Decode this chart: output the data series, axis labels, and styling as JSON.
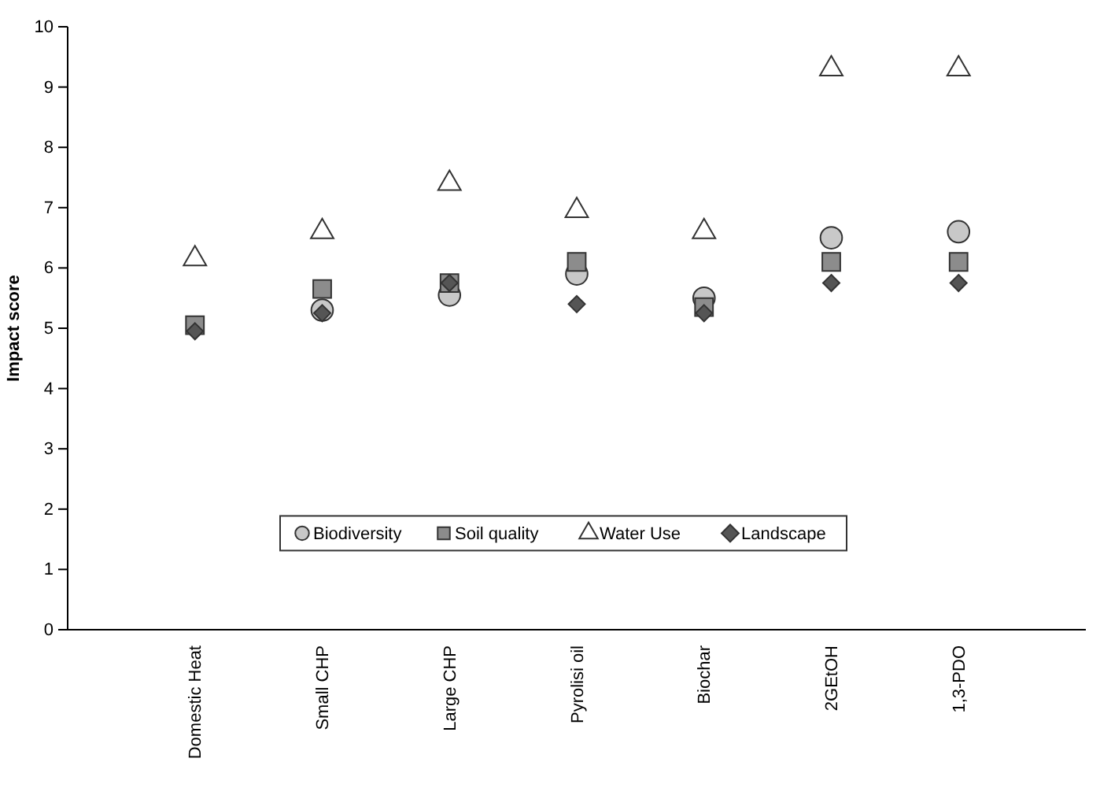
{
  "chart_data": {
    "type": "scatter",
    "ylabel": "Impact score",
    "categories": [
      "Domestic Heat",
      "Small CHP",
      "Large CHP",
      "Pyrolisi oil",
      "Biochar",
      "2GEtOH",
      "1,3-PDO"
    ],
    "ylim": [
      0,
      10
    ],
    "yticks": [
      0,
      1,
      2,
      3,
      4,
      5,
      6,
      7,
      8,
      9,
      10
    ],
    "grid": false,
    "legend": "bottom",
    "series": [
      {
        "name": "Biodiversity",
        "color": "#c8c8c8",
        "marker": "circle",
        "values": [
          null,
          5.3,
          5.55,
          5.9,
          5.5,
          6.5,
          6.6
        ]
      },
      {
        "name": "Soil quality",
        "color": "#8c8c8c",
        "marker": "square",
        "values": [
          5.05,
          5.65,
          5.75,
          6.1,
          5.35,
          6.1,
          6.1
        ]
      },
      {
        "name": "Water Use",
        "color": "#ffffff",
        "marker": "triangle",
        "values": [
          6.15,
          6.6,
          7.4,
          6.95,
          6.6,
          9.3,
          9.3
        ]
      },
      {
        "name": "Landscape",
        "color": "#555555",
        "marker": "diamond",
        "values": [
          4.95,
          5.25,
          5.75,
          5.4,
          5.25,
          5.75,
          5.75
        ]
      }
    ]
  }
}
